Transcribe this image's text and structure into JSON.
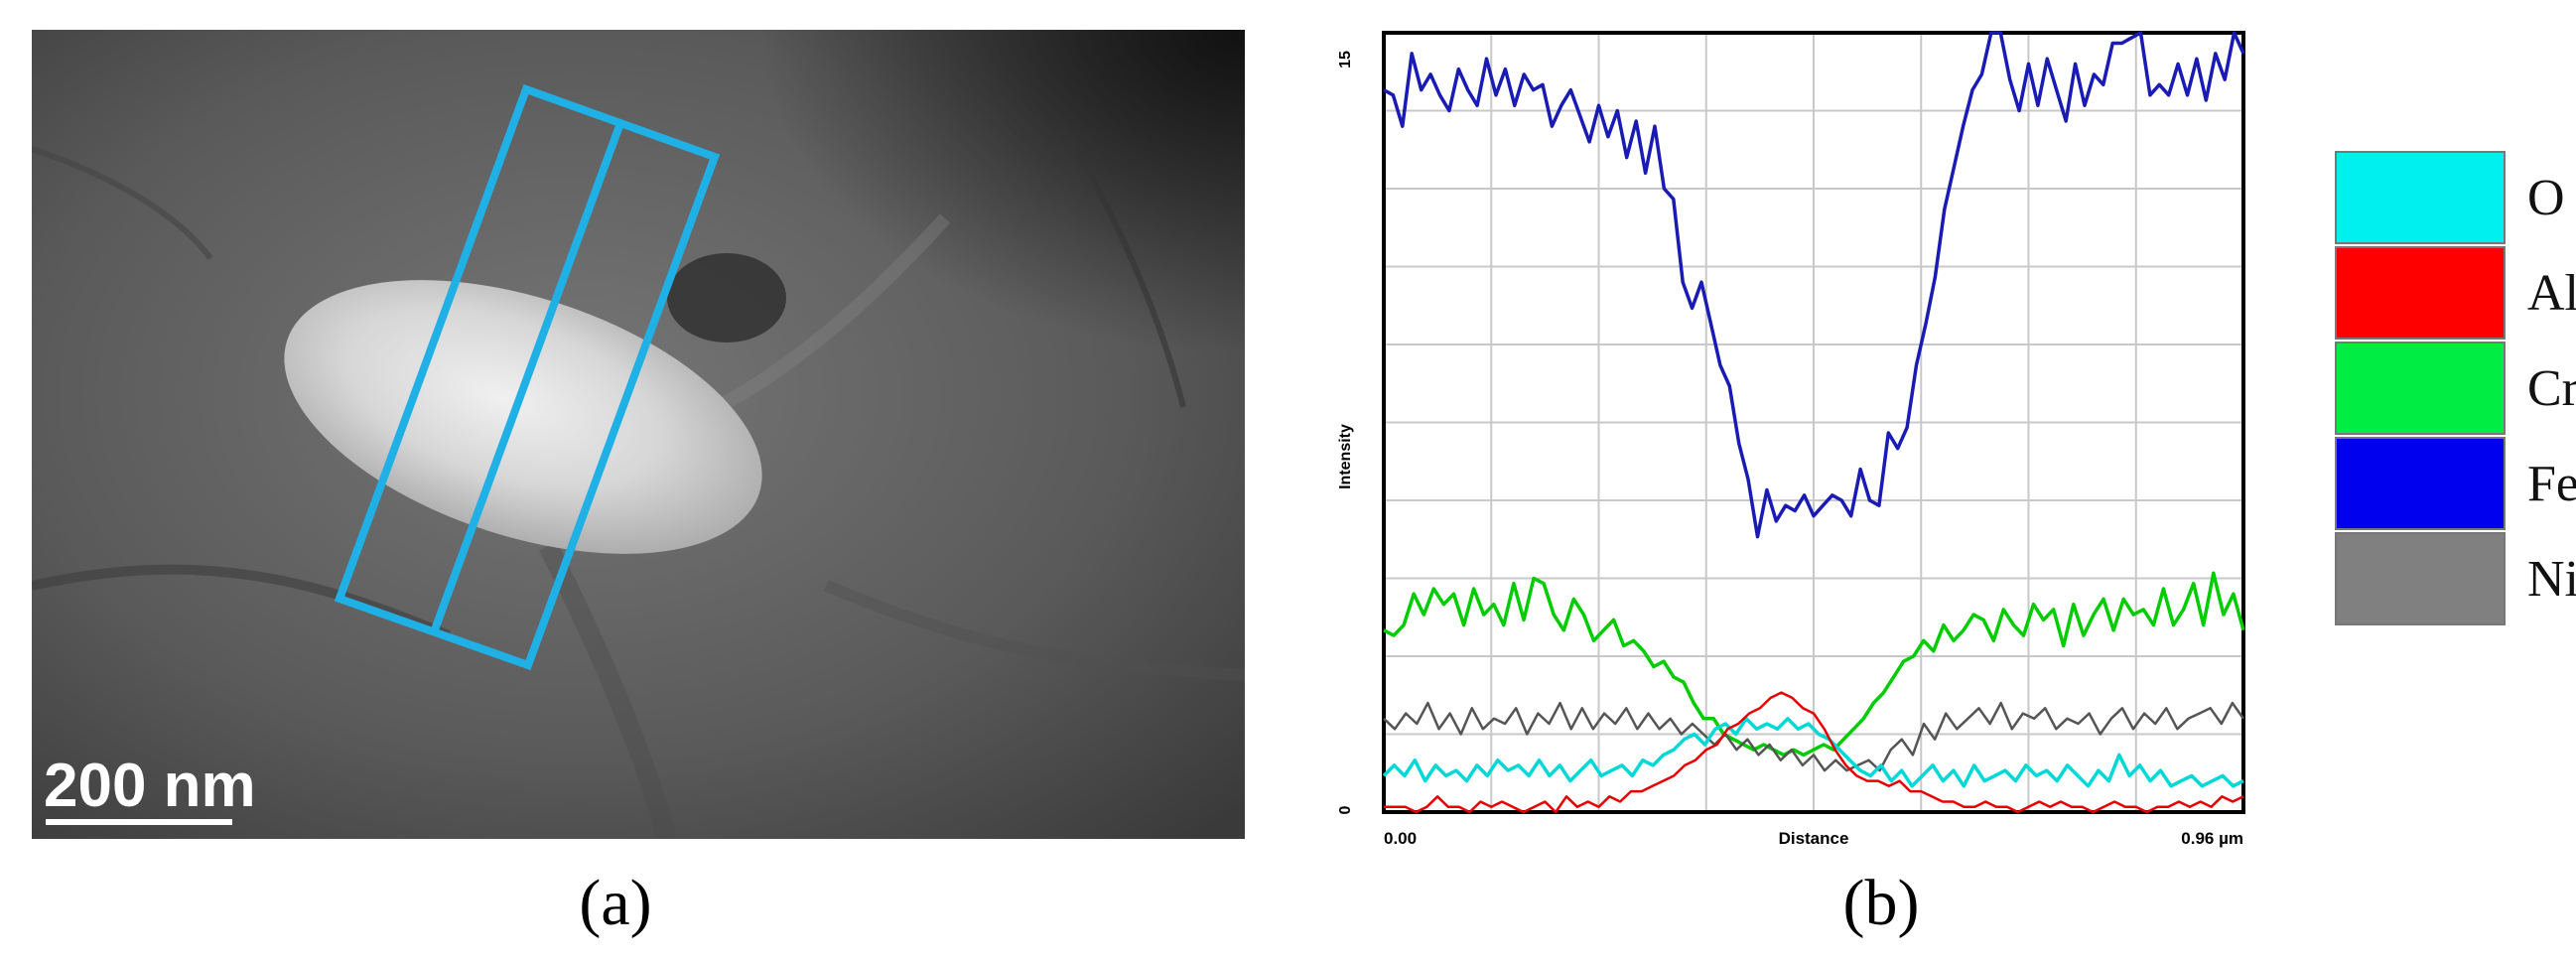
{
  "panel_a": {
    "caption": "(a)",
    "scale_bar_label": "200 nm",
    "box_color": "#1fb0e6"
  },
  "panel_b": {
    "caption": "(b)"
  },
  "legend": [
    {
      "label": "O",
      "color": "#00f0f0"
    },
    {
      "label": "Al",
      "color": "#ff0000"
    },
    {
      "label": "Cr",
      "color": "#00ee44"
    },
    {
      "label": "Fe",
      "color": "#0000ee"
    },
    {
      "label": "Ni",
      "color": "#808080"
    }
  ],
  "chart_data": {
    "type": "line",
    "xlabel": "Distance",
    "ylabel": "Intensity",
    "x_tick_labels": [
      "0.00",
      "0.96 µm"
    ],
    "y_tick_labels": [
      "0",
      "15"
    ],
    "xlim": [
      0,
      0.96
    ],
    "ylim": [
      0,
      15
    ],
    "grid": true,
    "series": [
      {
        "name": "Fe",
        "color": "#1a1ab4",
        "values": [
          13.9,
          13.8,
          13.2,
          14.6,
          13.9,
          14.2,
          13.8,
          13.5,
          14.3,
          13.9,
          13.6,
          14.5,
          13.8,
          14.3,
          13.6,
          14.2,
          13.9,
          14.0,
          13.2,
          13.6,
          13.9,
          13.4,
          12.9,
          13.6,
          13.0,
          13.5,
          12.6,
          13.3,
          12.3,
          13.2,
          12.0,
          11.8,
          10.2,
          9.7,
          10.2,
          9.4,
          8.6,
          8.2,
          7.1,
          6.4,
          5.3,
          6.2,
          5.6,
          5.9,
          5.8,
          6.1,
          5.7,
          5.9,
          6.1,
          6.0,
          5.7,
          6.6,
          6.0,
          5.9,
          7.3,
          7.0,
          7.4,
          8.6,
          9.4,
          10.3,
          11.6,
          12.4,
          13.2,
          13.9,
          14.2,
          15.0,
          15.0,
          14.1,
          13.5,
          14.4,
          13.6,
          14.5,
          13.9,
          13.3,
          14.4,
          13.6,
          14.2,
          14.0,
          14.8,
          14.8,
          14.9,
          15.0,
          13.8,
          14.0,
          13.8,
          14.4,
          13.8,
          14.5,
          13.7,
          14.6,
          14.1,
          15.0,
          14.6
        ]
      },
      {
        "name": "Cr",
        "color": "#00cc00",
        "values": [
          3.5,
          3.4,
          3.6,
          4.2,
          3.8,
          4.3,
          4.0,
          4.2,
          3.6,
          4.3,
          3.8,
          4.0,
          3.6,
          4.4,
          3.7,
          4.5,
          4.4,
          3.8,
          3.5,
          4.1,
          3.8,
          3.3,
          3.5,
          3.7,
          3.2,
          3.3,
          3.1,
          2.8,
          2.9,
          2.6,
          2.5,
          2.1,
          1.8,
          1.8,
          1.5,
          1.4,
          1.3,
          1.2,
          1.3,
          1.2,
          1.1,
          1.2,
          1.1,
          1.2,
          1.3,
          1.2,
          1.4,
          1.6,
          1.8,
          2.1,
          2.3,
          2.6,
          2.9,
          3.0,
          3.3,
          3.1,
          3.6,
          3.3,
          3.5,
          3.8,
          3.7,
          3.3,
          3.9,
          3.6,
          3.4,
          4.0,
          3.7,
          3.9,
          3.2,
          4.0,
          3.4,
          3.8,
          4.1,
          3.5,
          4.1,
          3.8,
          3.9,
          3.6,
          4.3,
          3.6,
          3.9,
          4.4,
          3.6,
          4.6,
          3.8,
          4.2,
          3.5
        ]
      },
      {
        "name": "Ni",
        "color": "#555555",
        "values": [
          1.8,
          1.6,
          1.9,
          1.7,
          2.1,
          1.6,
          1.9,
          1.5,
          2.0,
          1.6,
          1.8,
          1.7,
          2.0,
          1.5,
          1.9,
          1.7,
          2.1,
          1.6,
          2.0,
          1.6,
          1.9,
          1.7,
          2.0,
          1.6,
          1.9,
          1.6,
          1.8,
          1.5,
          1.7,
          1.5,
          1.3,
          1.5,
          1.2,
          1.4,
          1.1,
          1.3,
          1.0,
          1.2,
          0.9,
          1.1,
          0.8,
          1.0,
          0.8,
          0.9,
          1.0,
          0.8,
          1.2,
          1.4,
          1.1,
          1.7,
          1.4,
          1.9,
          1.6,
          1.8,
          2.0,
          1.7,
          2.1,
          1.6,
          1.9,
          1.8,
          2.0,
          1.6,
          1.8,
          1.7,
          1.9,
          1.5,
          1.8,
          2.0,
          1.6,
          1.9,
          1.7,
          2.0,
          1.6,
          1.8,
          1.9,
          2.0,
          1.7,
          2.1,
          1.8
        ]
      },
      {
        "name": "O",
        "color": "#00d8d8",
        "values": [
          0.7,
          0.9,
          0.7,
          1.0,
          0.6,
          0.9,
          0.7,
          0.8,
          0.6,
          0.9,
          0.7,
          1.0,
          0.8,
          0.9,
          0.7,
          1.0,
          0.7,
          0.9,
          0.6,
          0.8,
          1.0,
          0.7,
          0.8,
          0.9,
          0.7,
          1.0,
          0.9,
          1.1,
          1.2,
          1.4,
          1.5,
          1.3,
          1.6,
          1.7,
          1.5,
          1.8,
          1.6,
          1.7,
          1.6,
          1.8,
          1.6,
          1.7,
          1.5,
          1.4,
          1.2,
          1.0,
          0.8,
          0.7,
          0.9,
          0.6,
          0.8,
          0.5,
          0.7,
          0.9,
          0.6,
          0.8,
          0.5,
          0.9,
          0.6,
          0.7,
          0.8,
          0.6,
          0.9,
          0.7,
          0.8,
          0.6,
          0.9,
          0.7,
          0.5,
          0.8,
          0.6,
          1.1,
          0.7,
          0.9,
          0.6,
          0.8,
          0.5,
          0.6,
          0.7,
          0.5,
          0.6,
          0.7,
          0.5,
          0.6
        ]
      },
      {
        "name": "Al",
        "color": "#e60000",
        "values": [
          0.1,
          0.1,
          0.1,
          0.0,
          0.1,
          0.3,
          0.1,
          0.1,
          0.0,
          0.2,
          0.1,
          0.2,
          0.1,
          0.0,
          0.1,
          0.2,
          0.0,
          0.3,
          0.1,
          0.2,
          0.1,
          0.3,
          0.2,
          0.4,
          0.4,
          0.5,
          0.6,
          0.7,
          0.9,
          1.0,
          1.2,
          1.3,
          1.6,
          1.7,
          1.9,
          2.0,
          2.2,
          2.3,
          2.2,
          2.0,
          1.9,
          1.6,
          1.2,
          0.9,
          0.7,
          0.6,
          0.6,
          0.5,
          0.6,
          0.4,
          0.4,
          0.3,
          0.2,
          0.2,
          0.1,
          0.1,
          0.2,
          0.1,
          0.1,
          0.0,
          0.1,
          0.2,
          0.1,
          0.2,
          0.1,
          0.1,
          0.0,
          0.1,
          0.2,
          0.1,
          0.1,
          0.0,
          0.1,
          0.1,
          0.2,
          0.1,
          0.2,
          0.1,
          0.3,
          0.2,
          0.3
        ]
      }
    ]
  }
}
